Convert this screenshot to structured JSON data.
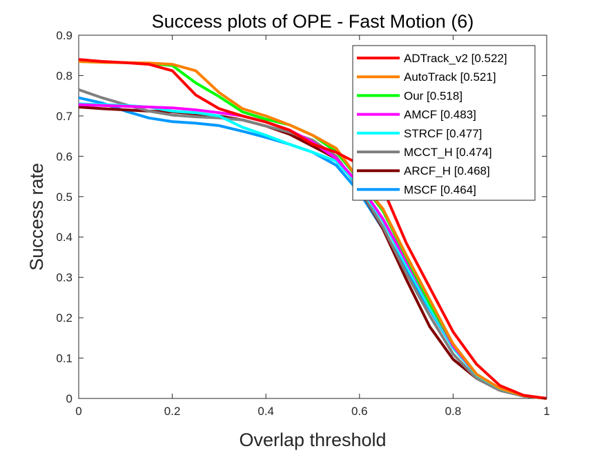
{
  "chart_data": {
    "type": "line",
    "title": "Success plots of OPE - Fast Motion (6)",
    "xlabel": "Overlap threshold",
    "ylabel": "Success rate",
    "xlim": [
      0,
      1
    ],
    "ylim": [
      0,
      0.9
    ],
    "xticks": [
      0,
      0.2,
      0.4,
      0.6,
      0.8,
      1
    ],
    "xtick_labels": [
      "0",
      "0.2",
      "0.4",
      "0.6",
      "0.8",
      "1"
    ],
    "yticks": [
      0,
      0.1,
      0.2,
      0.3,
      0.4,
      0.5,
      0.6,
      0.7,
      0.8,
      0.9
    ],
    "ytick_labels": [
      "0",
      "0.1",
      "0.2",
      "0.3",
      "0.4",
      "0.5",
      "0.6",
      "0.7",
      "0.8",
      "0.9"
    ],
    "grid": false,
    "legend_position": "top-right",
    "x": [
      0,
      0.05,
      0.1,
      0.15,
      0.2,
      0.25,
      0.3,
      0.35,
      0.4,
      0.45,
      0.5,
      0.55,
      0.6,
      0.65,
      0.7,
      0.75,
      0.8,
      0.85,
      0.9,
      0.95,
      1.0
    ],
    "series": [
      {
        "name": "ADTrack_v2 [0.522]",
        "color": "#ff0000",
        "values": [
          0.84,
          0.835,
          0.832,
          0.828,
          0.812,
          0.752,
          0.718,
          0.7,
          0.685,
          0.665,
          0.63,
          0.61,
          0.58,
          0.52,
          0.385,
          0.275,
          0.165,
          0.085,
          0.032,
          0.008,
          0.0
        ]
      },
      {
        "name": "AutoTrack [0.521]",
        "color": "#ff8000",
        "values": [
          0.835,
          0.833,
          0.832,
          0.831,
          0.828,
          0.812,
          0.758,
          0.718,
          0.7,
          0.678,
          0.652,
          0.62,
          0.54,
          0.47,
          0.355,
          0.245,
          0.135,
          0.06,
          0.025,
          0.007,
          0.0
        ]
      },
      {
        "name": "Our [0.518]",
        "color": "#00ff00",
        "values": [
          0.835,
          0.833,
          0.832,
          0.83,
          0.825,
          0.782,
          0.748,
          0.71,
          0.692,
          0.678,
          0.652,
          0.612,
          0.54,
          0.465,
          0.35,
          0.235,
          0.135,
          0.06,
          0.025,
          0.007,
          0.0
        ]
      },
      {
        "name": "AMCF [0.483]",
        "color": "#ff00ff",
        "values": [
          0.728,
          0.726,
          0.724,
          0.722,
          0.72,
          0.715,
          0.708,
          0.7,
          0.685,
          0.665,
          0.635,
          0.595,
          0.53,
          0.445,
          0.34,
          0.235,
          0.13,
          0.06,
          0.025,
          0.007,
          0.0
        ]
      },
      {
        "name": "STRCF [0.477]",
        "color": "#00ffff",
        "values": [
          0.73,
          0.728,
          0.726,
          0.722,
          0.712,
          0.708,
          0.7,
          0.672,
          0.652,
          0.63,
          0.61,
          0.588,
          0.525,
          0.44,
          0.33,
          0.225,
          0.125,
          0.058,
          0.024,
          0.007,
          0.0
        ]
      },
      {
        "name": "MCCT_H [0.474]",
        "color": "#808080",
        "values": [
          0.765,
          0.745,
          0.728,
          0.712,
          0.702,
          0.698,
          0.695,
          0.69,
          0.675,
          0.66,
          0.64,
          0.6,
          0.52,
          0.425,
          0.31,
          0.205,
          0.11,
          0.05,
          0.02,
          0.006,
          0.0
        ]
      },
      {
        "name": "ARCF_H [0.468]",
        "color": "#800000",
        "values": [
          0.722,
          0.718,
          0.715,
          0.712,
          0.71,
          0.705,
          0.7,
          0.69,
          0.675,
          0.655,
          0.625,
          0.595,
          0.52,
          0.42,
          0.295,
          0.178,
          0.097,
          0.05,
          0.02,
          0.006,
          0.0
        ]
      },
      {
        "name": "MSCF [0.464]",
        "color": "#0099ff",
        "values": [
          0.745,
          0.732,
          0.712,
          0.695,
          0.686,
          0.682,
          0.676,
          0.662,
          0.647,
          0.63,
          0.61,
          0.578,
          0.51,
          0.42,
          0.32,
          0.22,
          0.125,
          0.058,
          0.022,
          0.006,
          0.0
        ]
      }
    ]
  }
}
